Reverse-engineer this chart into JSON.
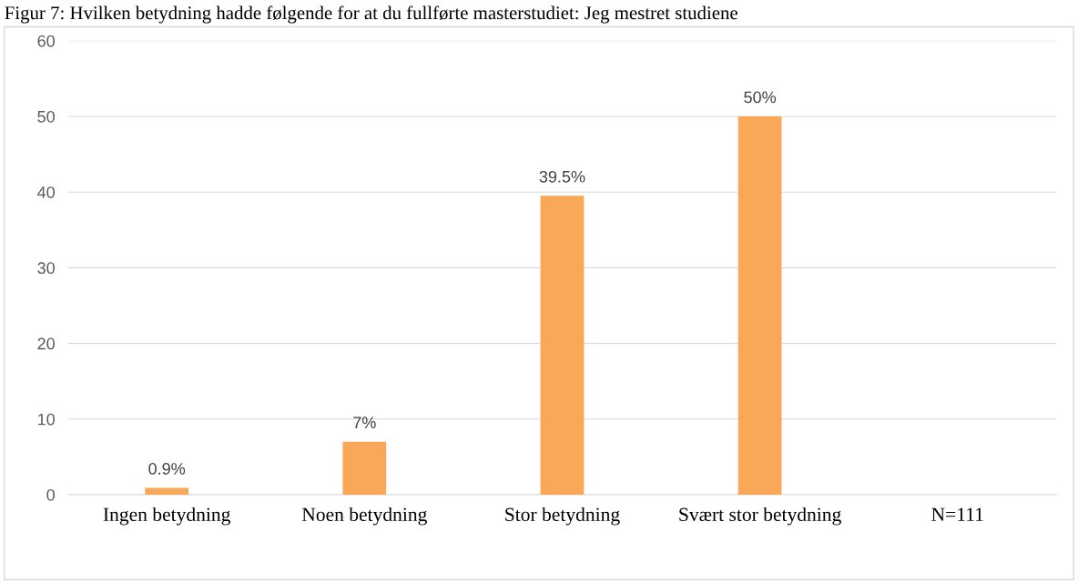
{
  "chart_data": {
    "type": "bar",
    "title": "Figur 7: Hvilken betydning hadde følgende for at du fullførte masterstudiet: Jeg mestret studiene",
    "categories": [
      "Ingen betydning",
      "Noen betydning",
      "Stor betydning",
      "Svært stor betydning",
      "N=111"
    ],
    "values": [
      0.9,
      7,
      39.5,
      50,
      null
    ],
    "value_labels": [
      "0.9%",
      "7%",
      "39.5%",
      "50%",
      null
    ],
    "color": "#f9a857",
    "ylim": [
      0,
      60
    ],
    "yticks": [
      0,
      10,
      20,
      30,
      40,
      50,
      60
    ],
    "grid": "y",
    "legend": false
  }
}
